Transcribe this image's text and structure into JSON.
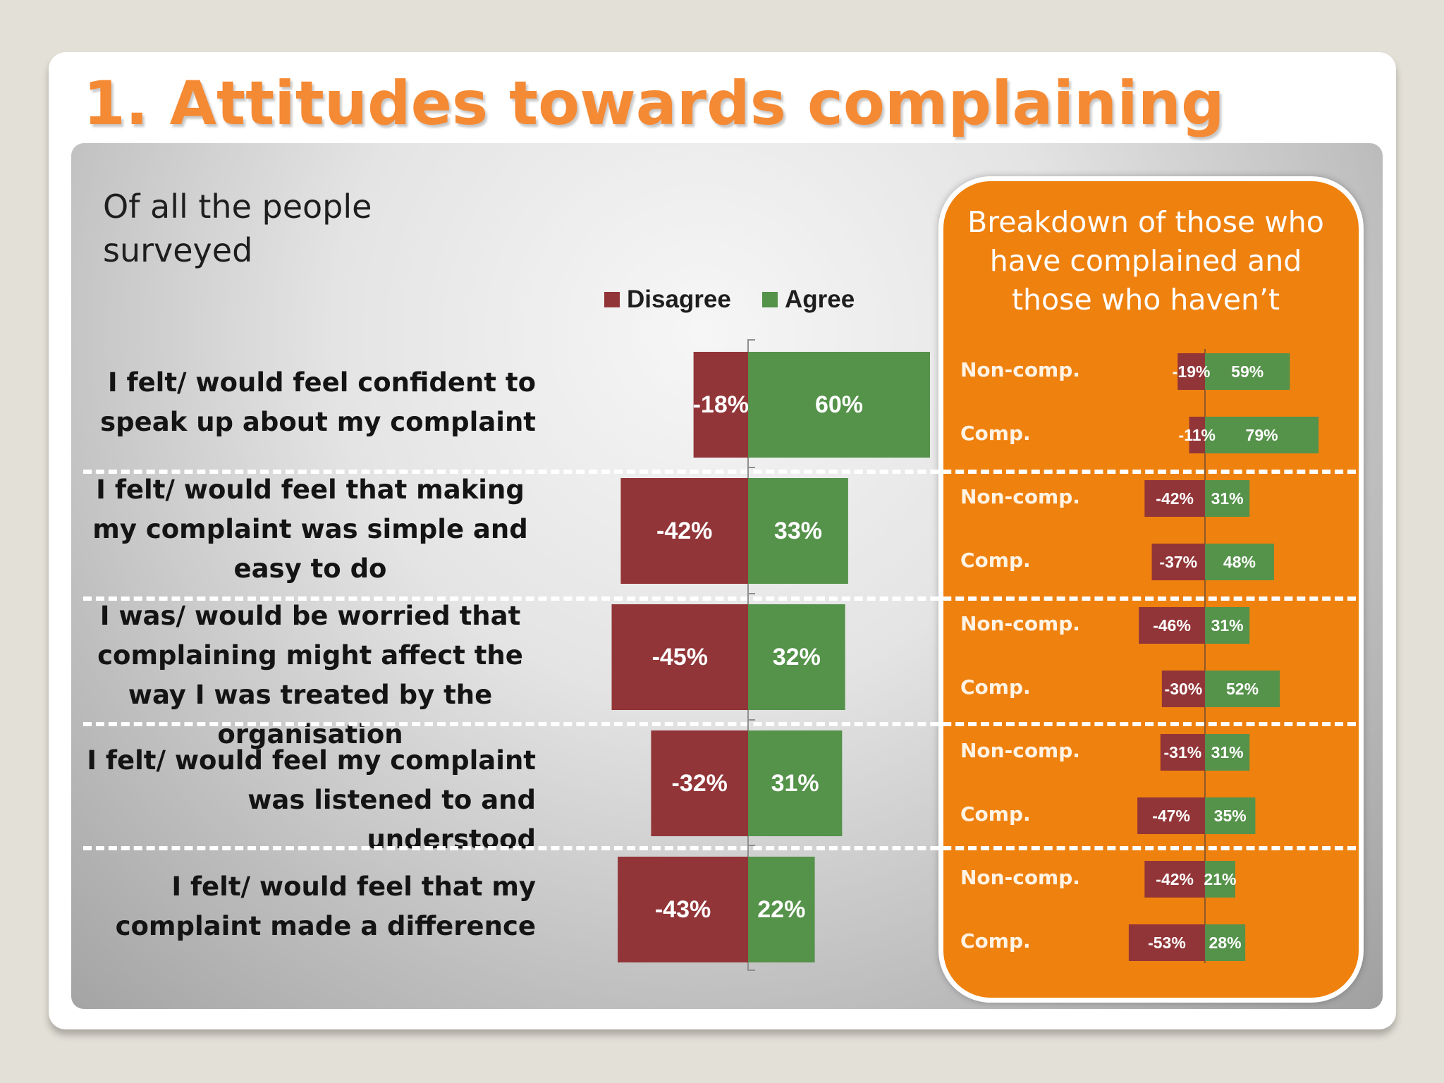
{
  "title": "1. Attitudes towards complaining",
  "subtitle": "Of all the people surveyed",
  "breakdown_title": "Breakdown of those who have complained and those who haven’t",
  "colors": {
    "disagree": "#923538",
    "agree": "#55924a",
    "orange": "#ef810f",
    "title": "#f58a35"
  },
  "chart_data": [
    {
      "type": "bar",
      "orientation": "horizontal-diverging",
      "title": "Of all the people surveyed",
      "categories": [
        "I felt/ would feel confident to speak up about my complaint",
        "I felt/ would feel that making my complaint was simple and easy to do",
        "I was/ would be worried that complaining might affect the way I was treated by the organisation",
        "I felt/ would feel my complaint was listened to and understood",
        "I felt/ would feel that my complaint made a difference"
      ],
      "series": [
        {
          "name": "Disagree",
          "values": [
            -18,
            -42,
            -45,
            -32,
            -43
          ],
          "labels": [
            "-18%",
            "-42%",
            "-45%",
            "-32%",
            "-43%"
          ]
        },
        {
          "name": "Agree",
          "values": [
            60,
            33,
            32,
            31,
            22
          ],
          "labels": [
            "60%",
            "33%",
            "32%",
            "31%",
            "22%"
          ]
        }
      ],
      "legend": "top"
    },
    {
      "type": "bar",
      "orientation": "horizontal-diverging",
      "title": "Breakdown of those who have complained and those who haven’t",
      "groups": [
        {
          "rows": [
            {
              "label": "Non-comp.",
              "disagree": -19,
              "agree": 59,
              "disagree_label": "-19%",
              "agree_label": "59%"
            },
            {
              "label": "Comp.",
              "disagree": -11,
              "agree": 79,
              "disagree_label": "-11%",
              "agree_label": "79%"
            }
          ]
        },
        {
          "rows": [
            {
              "label": "Non-comp.",
              "disagree": -42,
              "agree": 31,
              "disagree_label": "-42%",
              "agree_label": "31%"
            },
            {
              "label": "Comp.",
              "disagree": -37,
              "agree": 48,
              "disagree_label": "-37%",
              "agree_label": "48%"
            }
          ]
        },
        {
          "rows": [
            {
              "label": "Non-comp.",
              "disagree": -46,
              "agree": 31,
              "disagree_label": "-46%",
              "agree_label": "31%"
            },
            {
              "label": "Comp.",
              "disagree": -30,
              "agree": 52,
              "disagree_label": "-30%",
              "agree_label": "52%"
            }
          ]
        },
        {
          "rows": [
            {
              "label": "Non-comp.",
              "disagree": -31,
              "agree": 31,
              "disagree_label": "-31%",
              "agree_label": "31%"
            },
            {
              "label": "Comp.",
              "disagree": -47,
              "agree": 35,
              "disagree_label": "-47%",
              "agree_label": "35%"
            }
          ]
        },
        {
          "rows": [
            {
              "label": "Non-comp.",
              "disagree": -42,
              "agree": 21,
              "disagree_label": "-42%",
              "agree_label": "21%"
            },
            {
              "label": "Comp.",
              "disagree": -53,
              "agree": 28,
              "disagree_label": "-53%",
              "agree_label": "28%"
            }
          ]
        }
      ]
    }
  ]
}
